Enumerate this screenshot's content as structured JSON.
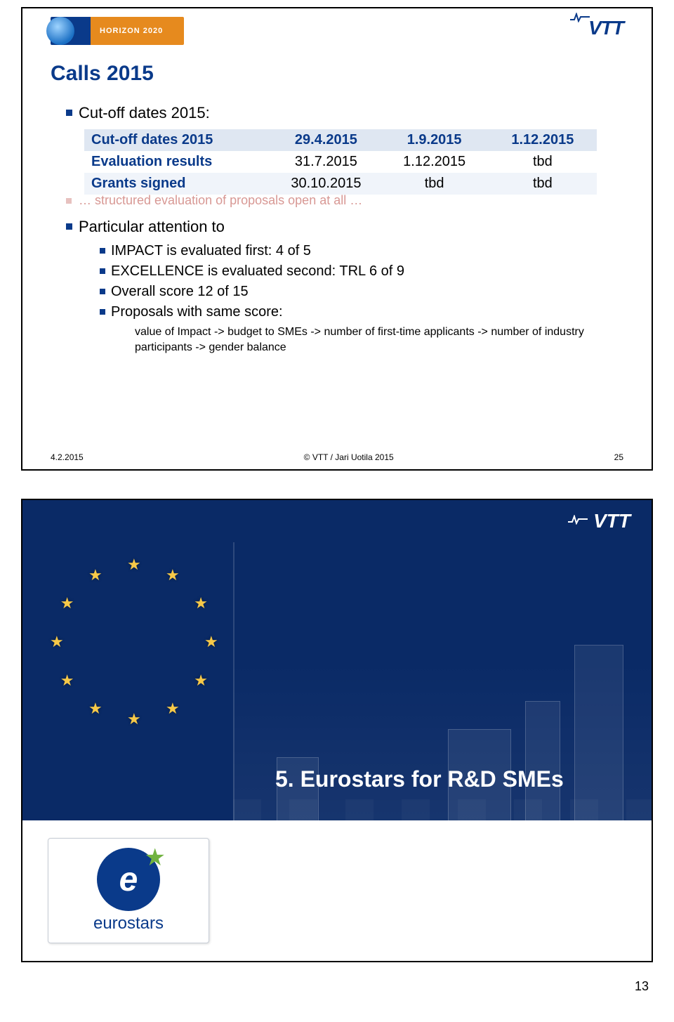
{
  "page_number": "13",
  "slide1": {
    "h2020_label": "HORIZON 2020",
    "vtt_label": "VTT",
    "title": "Calls 2015",
    "bullet_cutoff": "Cut-off dates 2015:",
    "table": {
      "rows": [
        {
          "label": "Cut-off dates 2015",
          "c1": "29.4.2015",
          "c2": "1.9.2015",
          "c3": "1.12.2015"
        },
        {
          "label": "Evaluation results",
          "c1": "31.7.2015",
          "c2": "1.12.2015",
          "c3": "tbd"
        },
        {
          "label": "Grants signed",
          "c1": "30.10.2015",
          "c2": "tbd",
          "c3": "tbd"
        }
      ],
      "header_bg": "#dfe7f2",
      "alt_bg": "#f0f4fa",
      "label_color": "#0a3a8a",
      "fontsize": 20
    },
    "ghost_text": "… structured evaluation of proposals open at all …",
    "bullet_attention": "Particular attention to",
    "sub_bullets": [
      "IMPACT is evaluated first: 4 of 5",
      "EXCELLENCE is evaluated second: TRL 6 of 9",
      "Overall score 12 of 15",
      "Proposals with same score:"
    ],
    "sub_sub": "value of Impact -> budget to SMEs -> number of first-time applicants -> number of industry participants -> gender balance",
    "footer_date": "4.2.2015",
    "footer_center": "© VTT / Jari Uotila 2015",
    "footer_page": "25",
    "title_color": "#0a3a8a",
    "bullet_marker_color": "#0a3a8a"
  },
  "slide2": {
    "vtt_label": "VTT",
    "section_title": "5. Eurostars for R&D SMEs",
    "eurostars_word": "eurostars",
    "background_color": "#0a2a66",
    "star_color": "#f7c948",
    "star_count": 12,
    "title_fontsize": 32,
    "title_color": "#ffffff",
    "card_border": "#c7cdd6",
    "es_circle_color": "#0a3a8a",
    "es_star_color": "#71b340"
  }
}
